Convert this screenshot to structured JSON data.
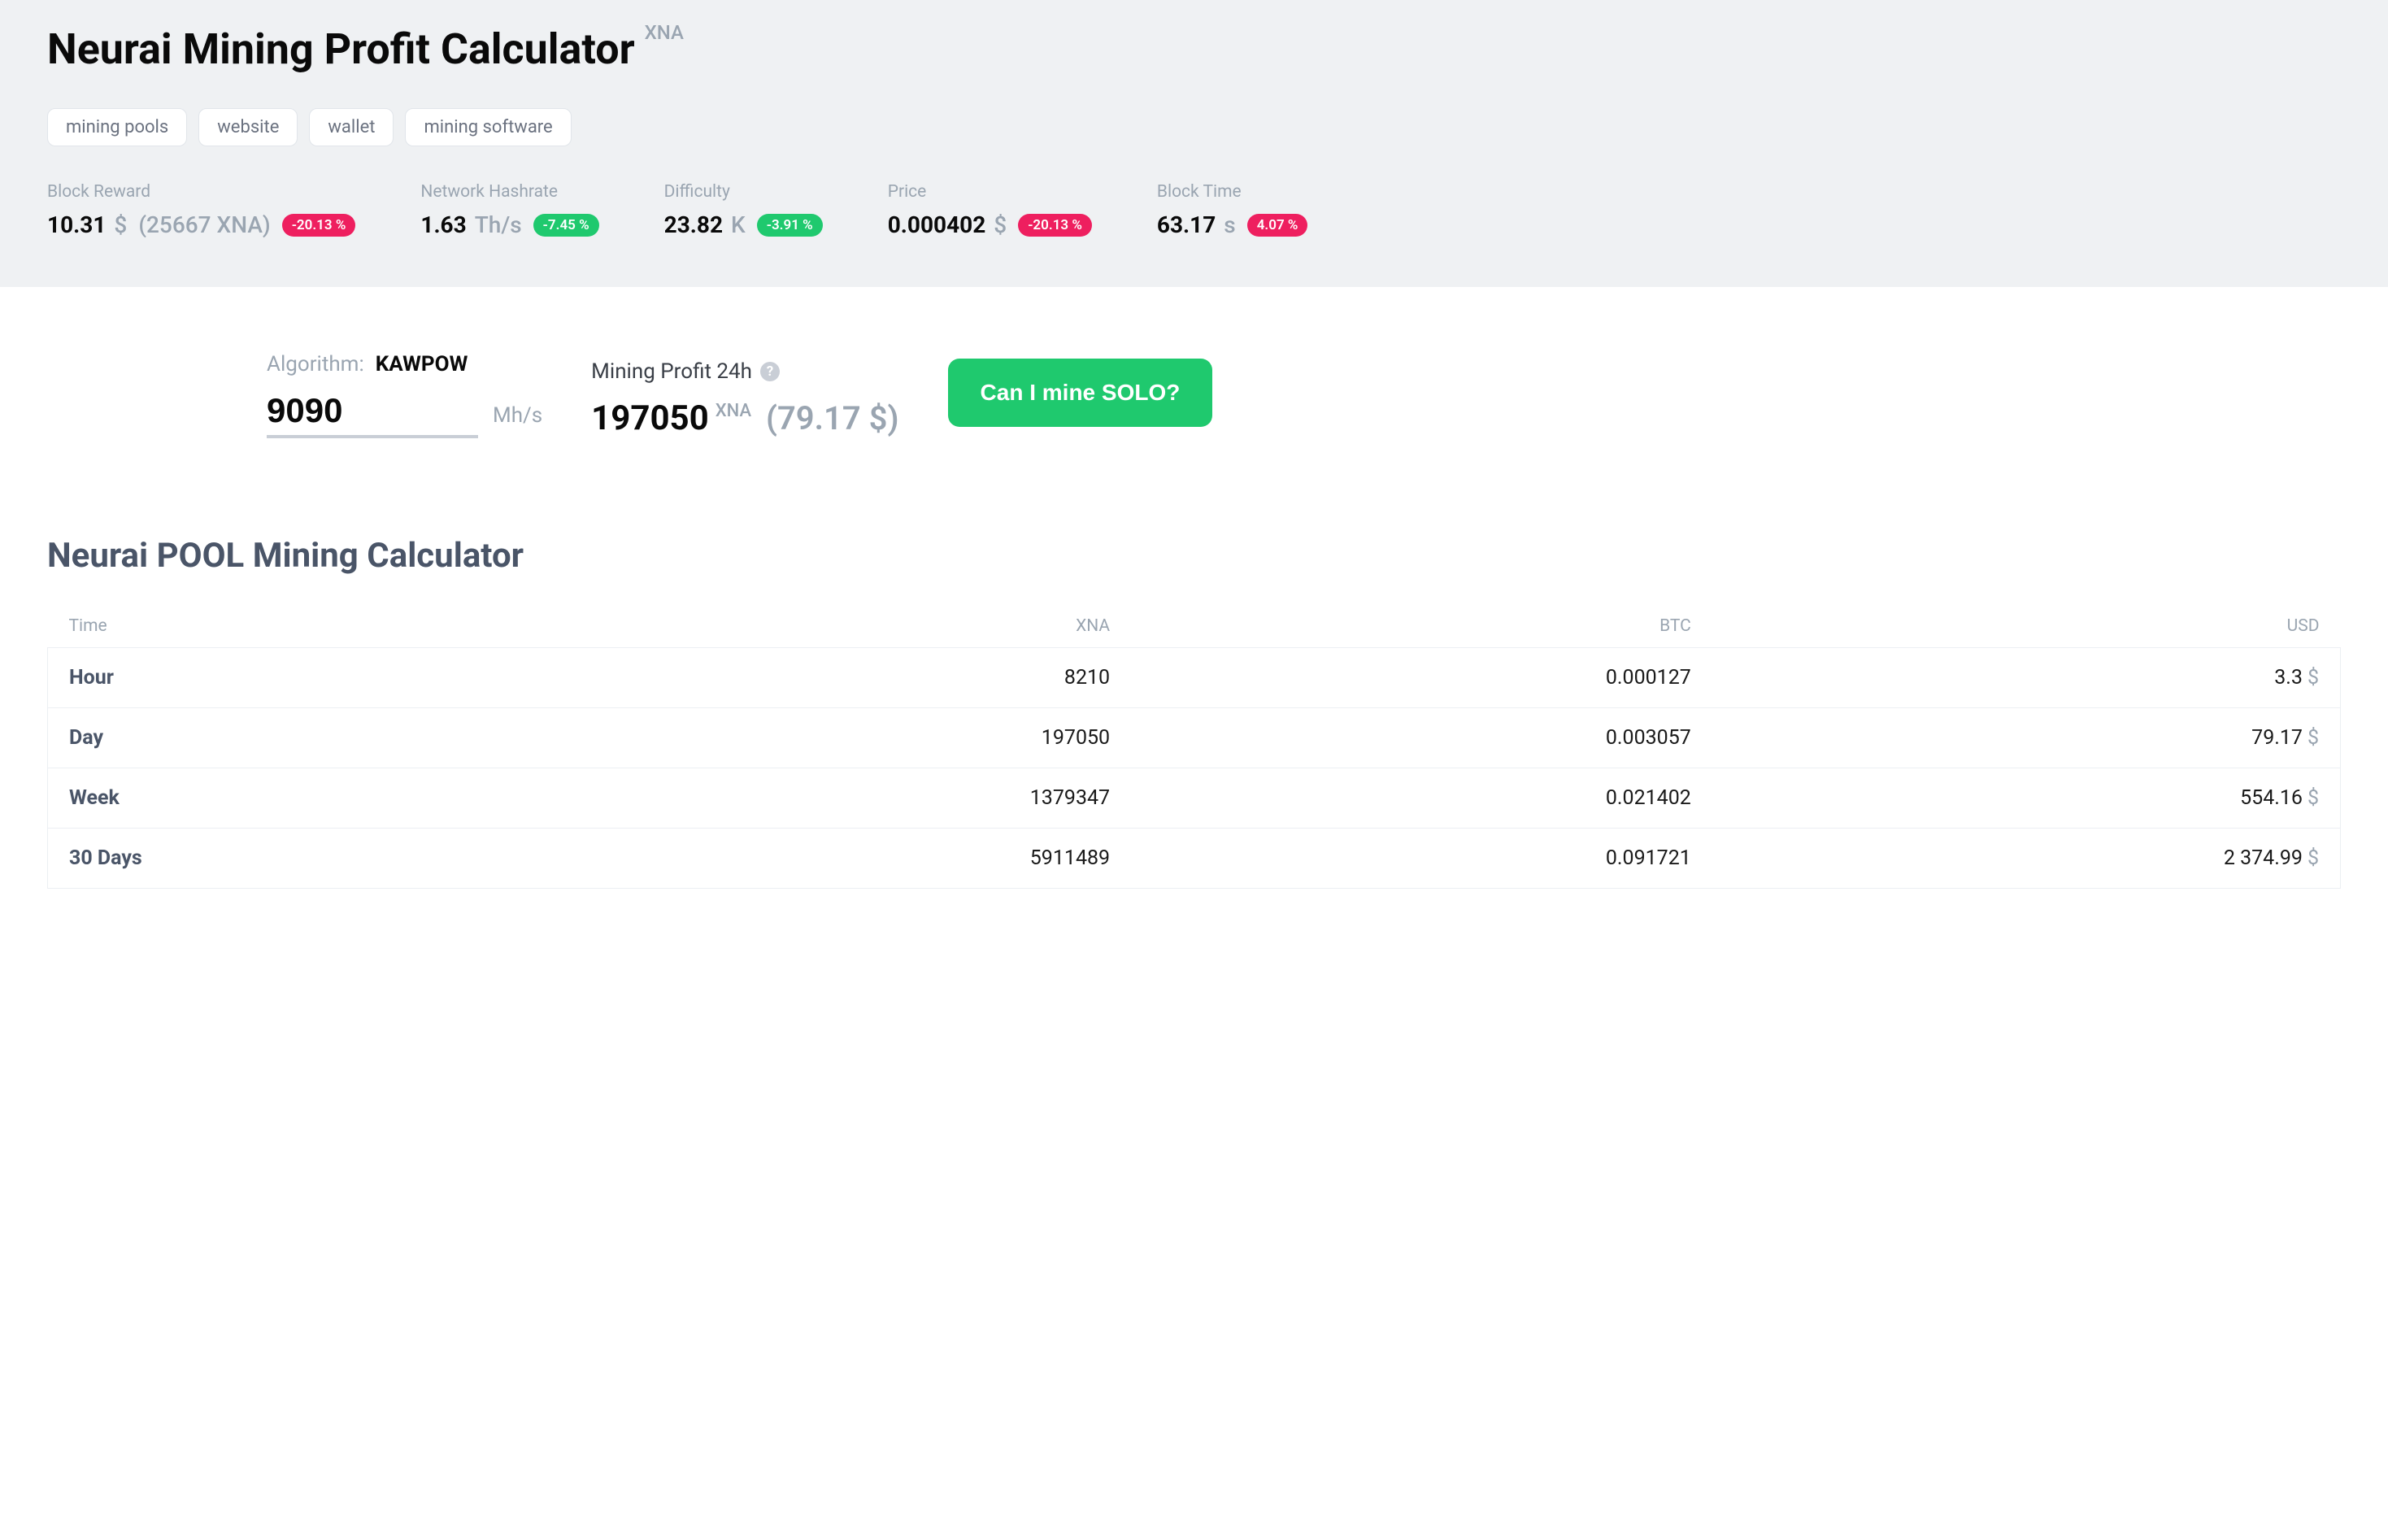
{
  "header": {
    "title": "Neurai Mining Profit Calculator",
    "ticker": "XNA",
    "tags": [
      "mining pools",
      "website",
      "wallet",
      "mining software"
    ]
  },
  "stats": {
    "block_reward": {
      "label": "Block Reward",
      "value": "10.31",
      "unit": "$",
      "extra": "(25667 XNA)",
      "change": "-20.13 %",
      "change_color": "red"
    },
    "network_hashrate": {
      "label": "Network Hashrate",
      "value": "1.63",
      "unit": "Th/s",
      "change": "-7.45 %",
      "change_color": "green"
    },
    "difficulty": {
      "label": "Difficulty",
      "value": "23.82",
      "unit": "K",
      "change": "-3.91 %",
      "change_color": "green"
    },
    "price": {
      "label": "Price",
      "value": "0.000402",
      "unit": "$",
      "change": "-20.13 %",
      "change_color": "red"
    },
    "block_time": {
      "label": "Block Time",
      "value": "63.17",
      "unit": "s",
      "change": "4.07 %",
      "change_color": "red"
    }
  },
  "calculator": {
    "algo_label": "Algorithm:",
    "algo_value": "KAWPOW",
    "hashrate_input": "9090",
    "hashrate_unit": "Mh/s",
    "profit_label": "Mining Profit 24h",
    "profit_value": "197050",
    "profit_ticker": "XNA",
    "profit_usd": "(79.17 $)",
    "solo_button": "Can I mine SOLO?"
  },
  "pool_table": {
    "title": "Neurai POOL Mining Calculator",
    "columns": [
      "Time",
      "XNA",
      "BTC",
      "USD"
    ],
    "rows": [
      {
        "time": "Hour",
        "xna": "8210",
        "btc": "0.000127",
        "usd": "3.3"
      },
      {
        "time": "Day",
        "xna": "197050",
        "btc": "0.003057",
        "usd": "79.17"
      },
      {
        "time": "Week",
        "xna": "1379347",
        "btc": "0.021402",
        "usd": "554.16"
      },
      {
        "time": "30 Days",
        "xna": "5911489",
        "btc": "0.091721",
        "usd": "2 374.99"
      }
    ]
  },
  "colors": {
    "badge_red": "#ee1f5f",
    "badge_green": "#1fc96e",
    "header_bg": "#eff1f3",
    "muted": "#9aa5b1"
  }
}
